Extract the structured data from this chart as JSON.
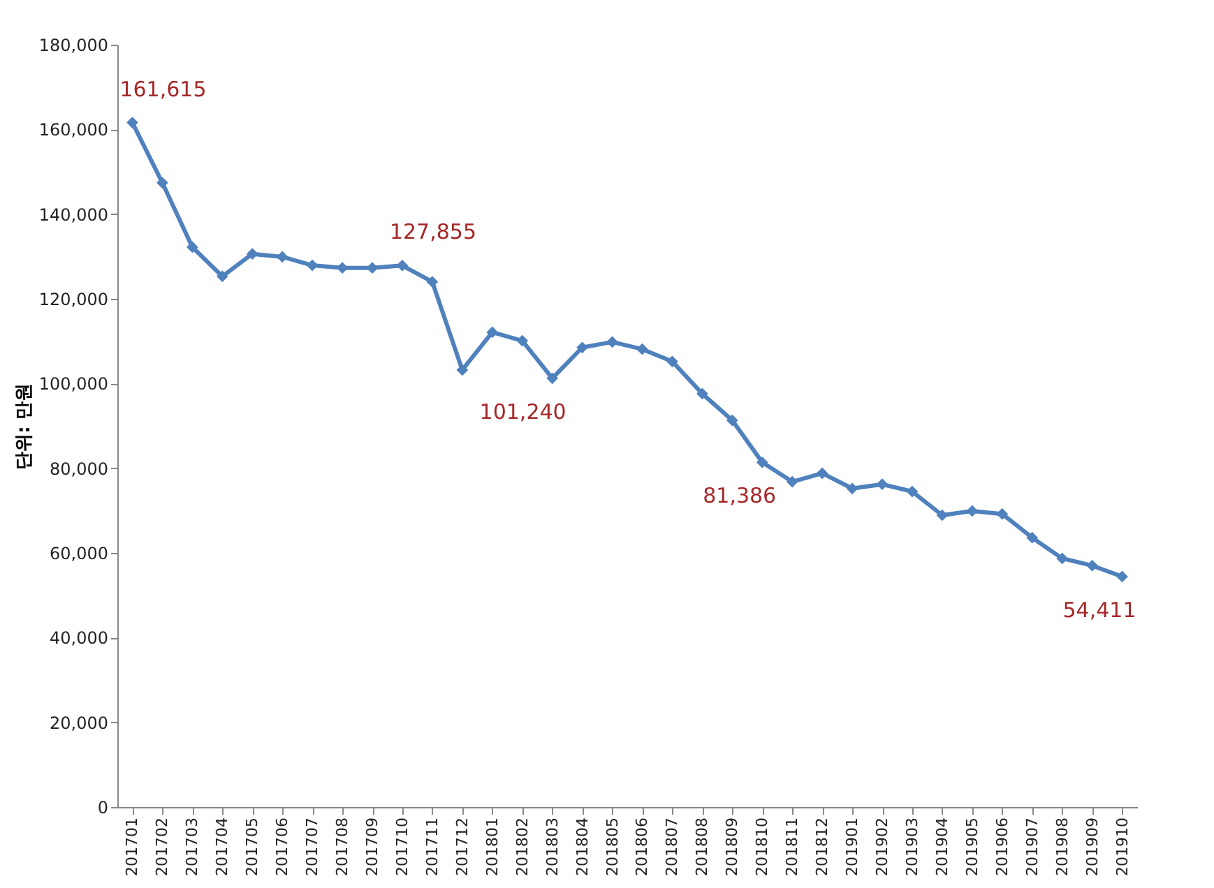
{
  "chart_data": {
    "type": "line",
    "ylabel": "단위: 만원",
    "categories": [
      "201701",
      "201702",
      "201703",
      "201704",
      "201705",
      "201706",
      "201707",
      "201708",
      "201709",
      "201710",
      "201711",
      "201712",
      "201801",
      "201802",
      "201803",
      "201804",
      "201805",
      "201806",
      "201807",
      "201808",
      "201809",
      "201810",
      "201811",
      "201812",
      "201901",
      "201902",
      "201903",
      "201904",
      "201905",
      "201906",
      "201907",
      "201908",
      "201909",
      "201910"
    ],
    "series": [
      {
        "color": "#4f81bd",
        "values": [
          161615,
          147400,
          132200,
          125300,
          130600,
          129900,
          127900,
          127300,
          127300,
          127855,
          124000,
          103200,
          112100,
          110100,
          101240,
          108500,
          109800,
          108100,
          105200,
          97600,
          91300,
          81386,
          76800,
          78800,
          75200,
          76200,
          74500,
          68900,
          69900,
          69200,
          63600,
          58700,
          57000,
          54411
        ],
        "value_labels": [
          "161,615",
          null,
          null,
          null,
          null,
          null,
          null,
          null,
          null,
          "127,855",
          null,
          null,
          null,
          null,
          "101,240",
          null,
          null,
          null,
          null,
          null,
          null,
          "81,386",
          null,
          null,
          null,
          null,
          null,
          null,
          null,
          null,
          null,
          null,
          null,
          "54,411"
        ]
      }
    ],
    "ylim": [
      0,
      180000
    ],
    "yticks": [
      0,
      {
        "value": 20000,
        "label": "20,000"
      },
      {
        "value": 40000,
        "label": "40,000"
      },
      {
        "value": 60000,
        "label": "60,000"
      },
      {
        "value": 80000,
        "label": "80,000"
      },
      {
        "value": 100000,
        "label": "100,000"
      },
      {
        "value": 120000,
        "label": "120,000"
      },
      {
        "value": 140000,
        "label": "140,000"
      },
      {
        "value": 160000,
        "label": "160,000"
      },
      {
        "value": 180000,
        "label": "180,000"
      }
    ],
    "grid": false,
    "legend": false,
    "marker": "diamond",
    "line_style": "solid"
  }
}
